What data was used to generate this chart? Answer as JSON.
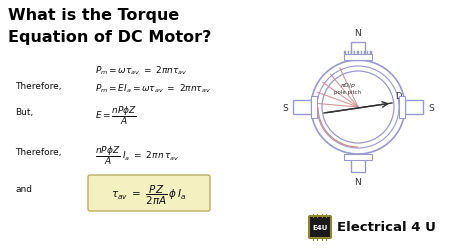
{
  "bg_color": "#ffffff",
  "title_line1": "What is the Torque",
  "title_line2": "Equation of DC Motor?",
  "title_color": "#000000",
  "title_fontsize": 11.5,
  "title_fontweight": "bold",
  "label_therefore": "Therefore,",
  "label_but": "But,",
  "label_therefore2": "Therefore,",
  "label_and": "and",
  "highlight_color": "#f5f0c0",
  "highlight_border": "#b8b060",
  "motor_color": "#8888bb",
  "motor_line_color": "#9999cc",
  "teeth_color": "#9999cc",
  "pole_pitch_color": "#cc8888",
  "diag_line_color": "#555555",
  "diam_line_color": "#333333",
  "label_color": "#333333",
  "brand_text": "Electrical 4 U",
  "chip_bg": "#1a1a1a",
  "chip_border": "#8a8830",
  "text_color": "#111111",
  "eq_fontsize": 6.5,
  "label_fontsize": 6.5,
  "brand_fontsize": 9.5
}
